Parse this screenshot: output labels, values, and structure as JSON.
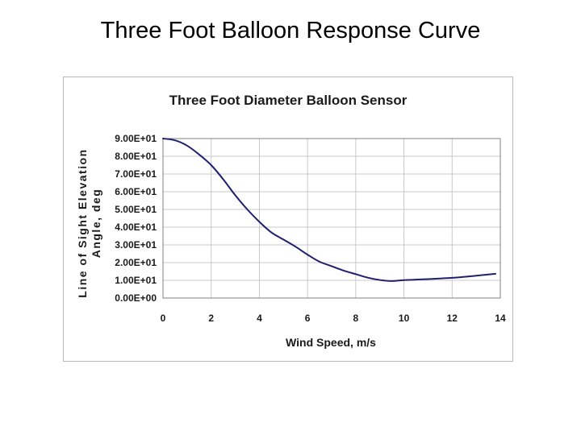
{
  "slide": {
    "title": "Three Foot Balloon Response Curve"
  },
  "chart_data": {
    "type": "line",
    "title": "Three Foot Diameter Balloon Sensor",
    "xlabel": "Wind Speed, m/s",
    "ylabel_line1": "Line of Sight Elevation",
    "ylabel_line2": "Angle, deg",
    "xlim": [
      0,
      14
    ],
    "ylim": [
      0,
      90
    ],
    "x_ticks": [
      0,
      2,
      4,
      6,
      8,
      10,
      12,
      14
    ],
    "x_tick_labels": [
      "0",
      "2",
      "4",
      "6",
      "8",
      "10",
      "12",
      "14"
    ],
    "y_ticks": [
      0,
      10,
      20,
      30,
      40,
      50,
      60,
      70,
      80,
      90
    ],
    "y_tick_labels": [
      "0.00E+00",
      "1.00E+01",
      "2.00E+01",
      "3.00E+01",
      "4.00E+01",
      "5.00E+01",
      "6.00E+01",
      "7.00E+01",
      "8.00E+01",
      "9.00E+01"
    ],
    "grid": true,
    "line_color": "#1f1f6e",
    "series": [
      {
        "x": [
          0,
          0.5,
          1,
          1.5,
          2,
          2.5,
          3,
          3.5,
          4,
          4.5,
          5,
          5.5,
          6,
          6.5,
          7,
          7.5,
          8,
          8.5,
          9,
          9.5,
          10,
          11,
          12,
          13,
          13.8
        ],
        "y": [
          90,
          89,
          86,
          81,
          75,
          67,
          58,
          50,
          43,
          37,
          33,
          29,
          24.5,
          20.5,
          18,
          15.5,
          13.5,
          11.5,
          10.2,
          9.6,
          10.1,
          10.7,
          11.4,
          12.6,
          13.7
        ]
      }
    ]
  }
}
